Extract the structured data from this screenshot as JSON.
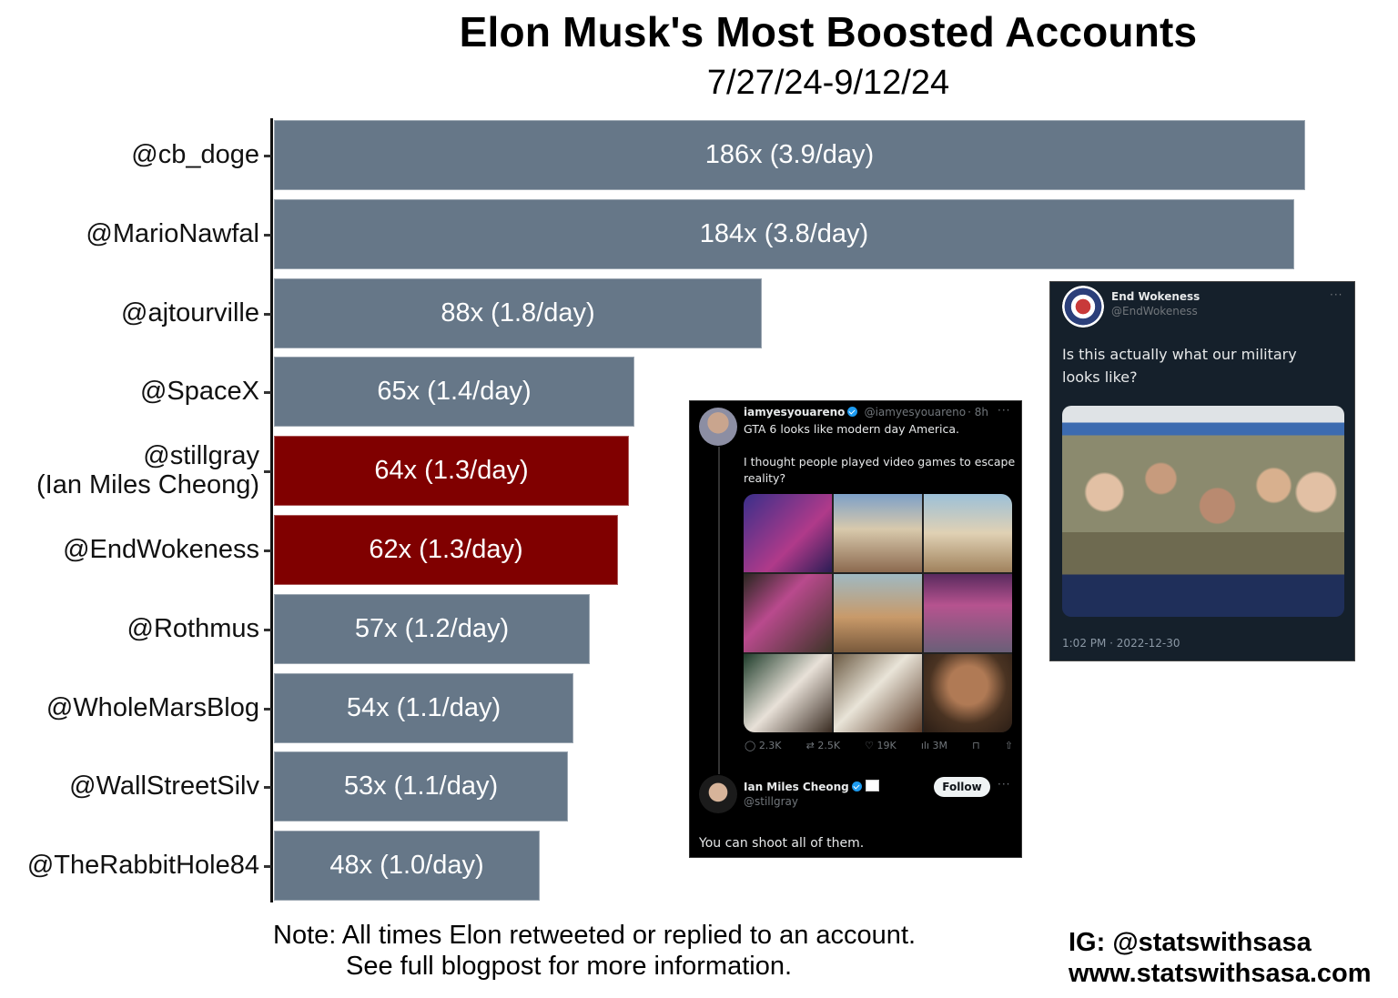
{
  "chart_data": {
    "type": "bar",
    "orientation": "horizontal",
    "title": "Elon Musk's Most Boosted Accounts",
    "subtitle": "7/27/24-9/12/24",
    "xlabel": "",
    "ylabel": "",
    "categories": [
      "@cb_doge",
      "@MarioNawfal",
      "@ajtourville",
      "@SpaceX",
      "@stillgray (Ian Miles Cheong)",
      "@EndWokeness",
      "@Rothmus",
      "@WholeMarsBlog",
      "@WallStreetSilv",
      "@TheRabbitHole84"
    ],
    "values": [
      186,
      184,
      88,
      65,
      64,
      62,
      57,
      54,
      53,
      48
    ],
    "per_day": [
      3.9,
      3.8,
      1.8,
      1.4,
      1.3,
      1.3,
      1.2,
      1.1,
      1.1,
      1.0
    ],
    "data_labels": [
      "186x (3.9/day)",
      "184x (3.8/day)",
      "88x (1.8/day)",
      "65x (1.4/day)",
      "64x (1.3/day)",
      "62x (1.3/day)",
      "57x (1.2/day)",
      "54x (1.1/day)",
      "53x (1.1/day)",
      "48x (1.0/day)"
    ],
    "highlighted": [
      "@stillgray (Ian Miles Cheong)",
      "@EndWokeness"
    ],
    "colors": {
      "default": "#667788",
      "highlight": "#800000"
    },
    "grid": false,
    "legend": null,
    "xlim": [
      0,
      186
    ]
  },
  "header": {
    "title": "Elon Musk's Most Boosted Accounts",
    "subtitle": "7/27/24-9/12/24"
  },
  "rows": [
    {
      "label": "@cb_doge",
      "label2": "",
      "value": 186,
      "text": "186x (3.9/day)",
      "color": "#667788"
    },
    {
      "label": "@MarioNawfal",
      "label2": "",
      "value": 184,
      "text": "184x (3.8/day)",
      "color": "#667788"
    },
    {
      "label": "@ajtourville",
      "label2": "",
      "value": 88,
      "text": "88x (1.8/day)",
      "color": "#667788"
    },
    {
      "label": "@SpaceX",
      "label2": "",
      "value": 65,
      "text": "65x (1.4/day)",
      "color": "#667788"
    },
    {
      "label": "@stillgray",
      "label2": "(Ian Miles Cheong)",
      "value": 64,
      "text": "64x (1.3/day)",
      "color": "#800000"
    },
    {
      "label": "@EndWokeness",
      "label2": "",
      "value": 62,
      "text": "62x (1.3/day)",
      "color": "#800000"
    },
    {
      "label": "@Rothmus",
      "label2": "",
      "value": 57,
      "text": "57x (1.2/day)",
      "color": "#667788"
    },
    {
      "label": "@WholeMarsBlog",
      "label2": "",
      "value": 54,
      "text": "54x (1.1/day)",
      "color": "#667788"
    },
    {
      "label": "@WallStreetSilv",
      "label2": "",
      "value": 53,
      "text": "53x (1.1/day)",
      "color": "#667788"
    },
    {
      "label": "@TheRabbitHole84",
      "label2": "",
      "value": 48,
      "text": "48x (1.0/day)",
      "color": "#667788"
    }
  ],
  "footer": {
    "note_line1": "Note: All times Elon retweeted or replied to an account.",
    "note_line2": "See full blogpost for more information.",
    "credit_ig": "IG: @statswithsasa",
    "credit_web": "www.statswithsasa.com"
  },
  "tweet_gta": {
    "author_name": "iamyesyouareno",
    "author_handle": "@iamyesyouareno",
    "time": "· 8h",
    "more": "···",
    "text_line1": "GTA 6 looks like modern day America.",
    "text_line2": "I thought people played video games to escape reality?",
    "stats": {
      "replies": "2.3K",
      "retweets": "2.5K",
      "likes": "19K",
      "views": "3M"
    },
    "reply": {
      "author_name": "Ian Miles Cheong",
      "author_handle": "@stillgray",
      "follow_label": "Follow",
      "more": "···",
      "text": "You can shoot all of them."
    }
  },
  "tweet_endwokeness": {
    "author_name": "End Wokeness",
    "author_handle": "@EndWokeness",
    "more": "···",
    "text": "Is this actually what our military looks like?",
    "timestamp": "1:02 PM · 2022-12-30"
  }
}
